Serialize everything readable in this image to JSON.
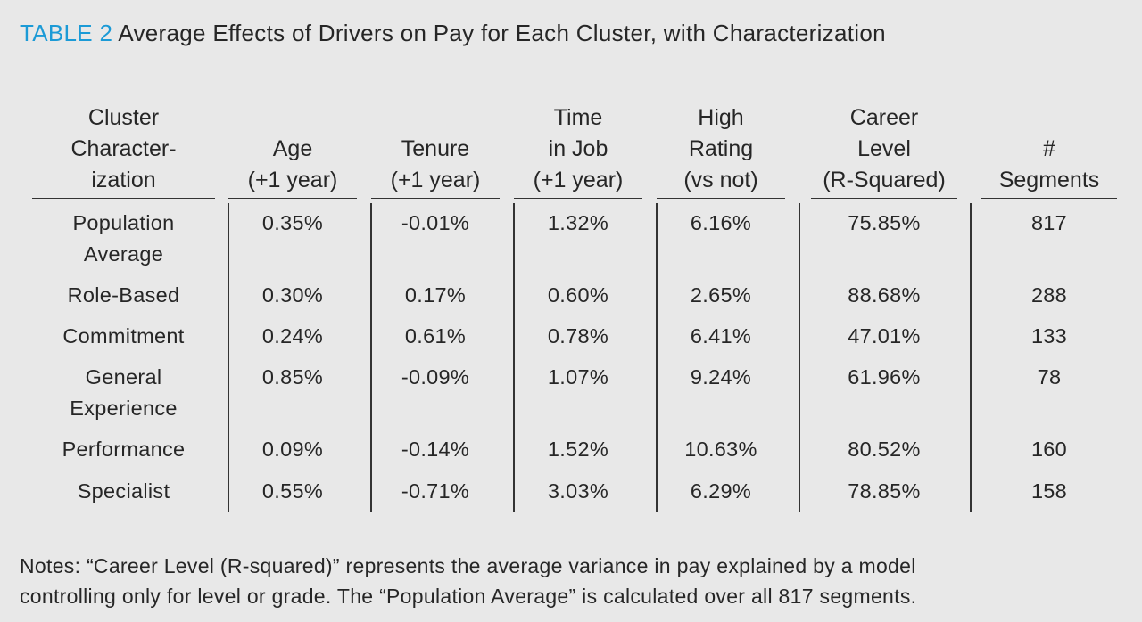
{
  "title": {
    "label": "TABLE 2",
    "text": "Average Effects of Drivers on Pay for Each Cluster, with Characterization"
  },
  "table": {
    "headers": [
      [
        "Cluster",
        "Character-",
        "ization"
      ],
      [
        "Age",
        "(+1 year)"
      ],
      [
        "Tenure",
        "(+1 year)"
      ],
      [
        "Time",
        "in Job",
        "(+1 year)"
      ],
      [
        "High",
        "Rating",
        "(vs not)"
      ],
      [
        "Career",
        "Level",
        "(R-Squared)"
      ],
      [
        "#",
        "Segments"
      ]
    ],
    "rows": [
      [
        [
          "Population",
          "Average"
        ],
        "0.35%",
        "-0.01%",
        "1.32%",
        "6.16%",
        "75.85%",
        "817"
      ],
      [
        [
          "Role-Based"
        ],
        "0.30%",
        "0.17%",
        "0.60%",
        "2.65%",
        "88.68%",
        "288"
      ],
      [
        [
          "Commitment"
        ],
        "0.24%",
        "0.61%",
        "0.78%",
        "6.41%",
        "47.01%",
        "133"
      ],
      [
        [
          "General",
          "Experience"
        ],
        "0.85%",
        "-0.09%",
        "1.07%",
        "9.24%",
        "61.96%",
        "78"
      ],
      [
        [
          "Performance"
        ],
        "0.09%",
        "-0.14%",
        "1.52%",
        "10.63%",
        "80.52%",
        "160"
      ],
      [
        [
          "Specialist"
        ],
        "0.55%",
        "-0.71%",
        "3.03%",
        "6.29%",
        "78.85%",
        "158"
      ]
    ]
  },
  "notes": [
    "Notes: “Career Level (R-squared)” represents the average variance in pay explained by a model",
    "controlling only for level or grade. The “Population Average” is calculated over all 817 segments."
  ],
  "colors": {
    "accent": "#1b9ad6",
    "background": "#e8e8e8",
    "text": "#262626"
  }
}
